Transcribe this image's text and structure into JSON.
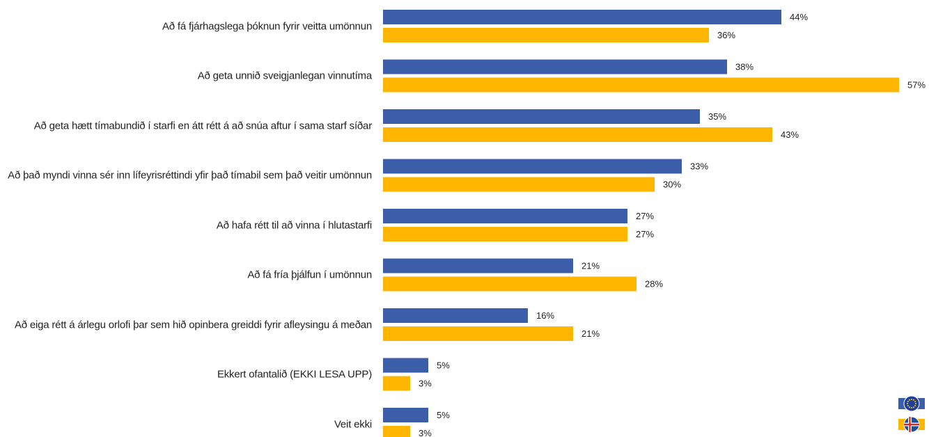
{
  "chart_data": {
    "type": "bar",
    "orientation": "horizontal",
    "categories": [
      "Að fá fjárhagslega þóknun fyrir veitta umönnun",
      "Að geta unnið sveigjanlegan vinnutíma",
      "Að geta hætt tímabundið í starfi en átt rétt á að snúa aftur í sama starf síðar",
      "Að það myndi vinna sér inn lífeyrisréttindi yfir það tímabil sem það veitir umönnun",
      "Að hafa rétt til að vinna í hlutastarfi",
      "Að fá fría þjálfun í umönnun",
      "Að eiga rétt á árlegu orlofi þar sem hið opinbera greiddi fyrir afleysingu á meðan",
      "Ekkert ofantalið (EKKI LESA UPP)",
      "Veit ekki"
    ],
    "series": [
      {
        "color": "#3c5ea8",
        "values": [
          44,
          38,
          35,
          33,
          27,
          21,
          16,
          5,
          5
        ],
        "value_labels": [
          "44%",
          "38%",
          "35%",
          "33%",
          "27%",
          "21%",
          "16%",
          "5%",
          "5%"
        ]
      },
      {
        "color": "#ffb600",
        "values": [
          36,
          57,
          43,
          30,
          27,
          28,
          21,
          3,
          3
        ],
        "value_labels": [
          "36%",
          "57%",
          "43%",
          "30%",
          "27%",
          "28%",
          "21%",
          "3%",
          "3%"
        ]
      }
    ]
  }
}
